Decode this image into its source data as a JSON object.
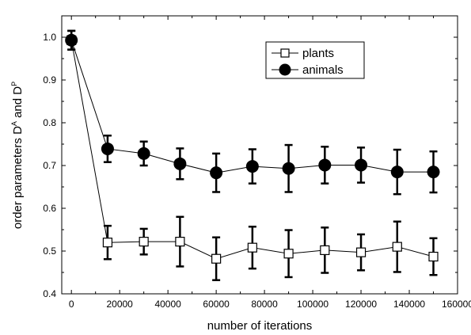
{
  "chart_data": {
    "type": "scatter",
    "xlabel": "number of iterations",
    "ylabel_parts": {
      "main": "order parameters D",
      "sup1": "A",
      "mid": " and D",
      "sup2": "P"
    },
    "xlim": [
      -4000,
      160000
    ],
    "ylim": [
      0.4,
      1.05
    ],
    "xticks": [
      0,
      20000,
      40000,
      60000,
      80000,
      100000,
      120000,
      140000,
      160000
    ],
    "xtick_labels": [
      "0",
      "20000",
      "40000",
      "60000",
      "80000",
      "100000",
      "120000",
      "140000",
      "160000"
    ],
    "yticks": [
      0.4,
      0.5,
      0.6,
      0.7,
      0.8,
      0.9,
      1.0
    ],
    "ytick_labels": [
      "0.4",
      "0.5",
      "0.6",
      "0.7",
      "0.8",
      "0.9",
      "1.0"
    ],
    "legend_position": "top-right",
    "series": [
      {
        "name": "plants",
        "marker": "open-square",
        "color": "#000000",
        "x": [
          0,
          15000,
          30000,
          45000,
          60000,
          75000,
          90000,
          105000,
          120000,
          135000,
          150000
        ],
        "y": [
          0.993,
          0.52,
          0.522,
          0.522,
          0.482,
          0.508,
          0.494,
          0.502,
          0.497,
          0.51,
          0.487
        ],
        "err": [
          0.022,
          0.039,
          0.03,
          0.058,
          0.05,
          0.049,
          0.055,
          0.053,
          0.042,
          0.059,
          0.043
        ]
      },
      {
        "name": "animals",
        "marker": "filled-circle",
        "color": "#000000",
        "x": [
          0,
          15000,
          30000,
          45000,
          60000,
          75000,
          90000,
          105000,
          120000,
          135000,
          150000
        ],
        "y": [
          0.993,
          0.739,
          0.728,
          0.704,
          0.683,
          0.698,
          0.693,
          0.701,
          0.701,
          0.685,
          0.685
        ],
        "err": [
          0.022,
          0.031,
          0.028,
          0.036,
          0.045,
          0.04,
          0.055,
          0.043,
          0.041,
          0.052,
          0.048
        ]
      }
    ]
  }
}
